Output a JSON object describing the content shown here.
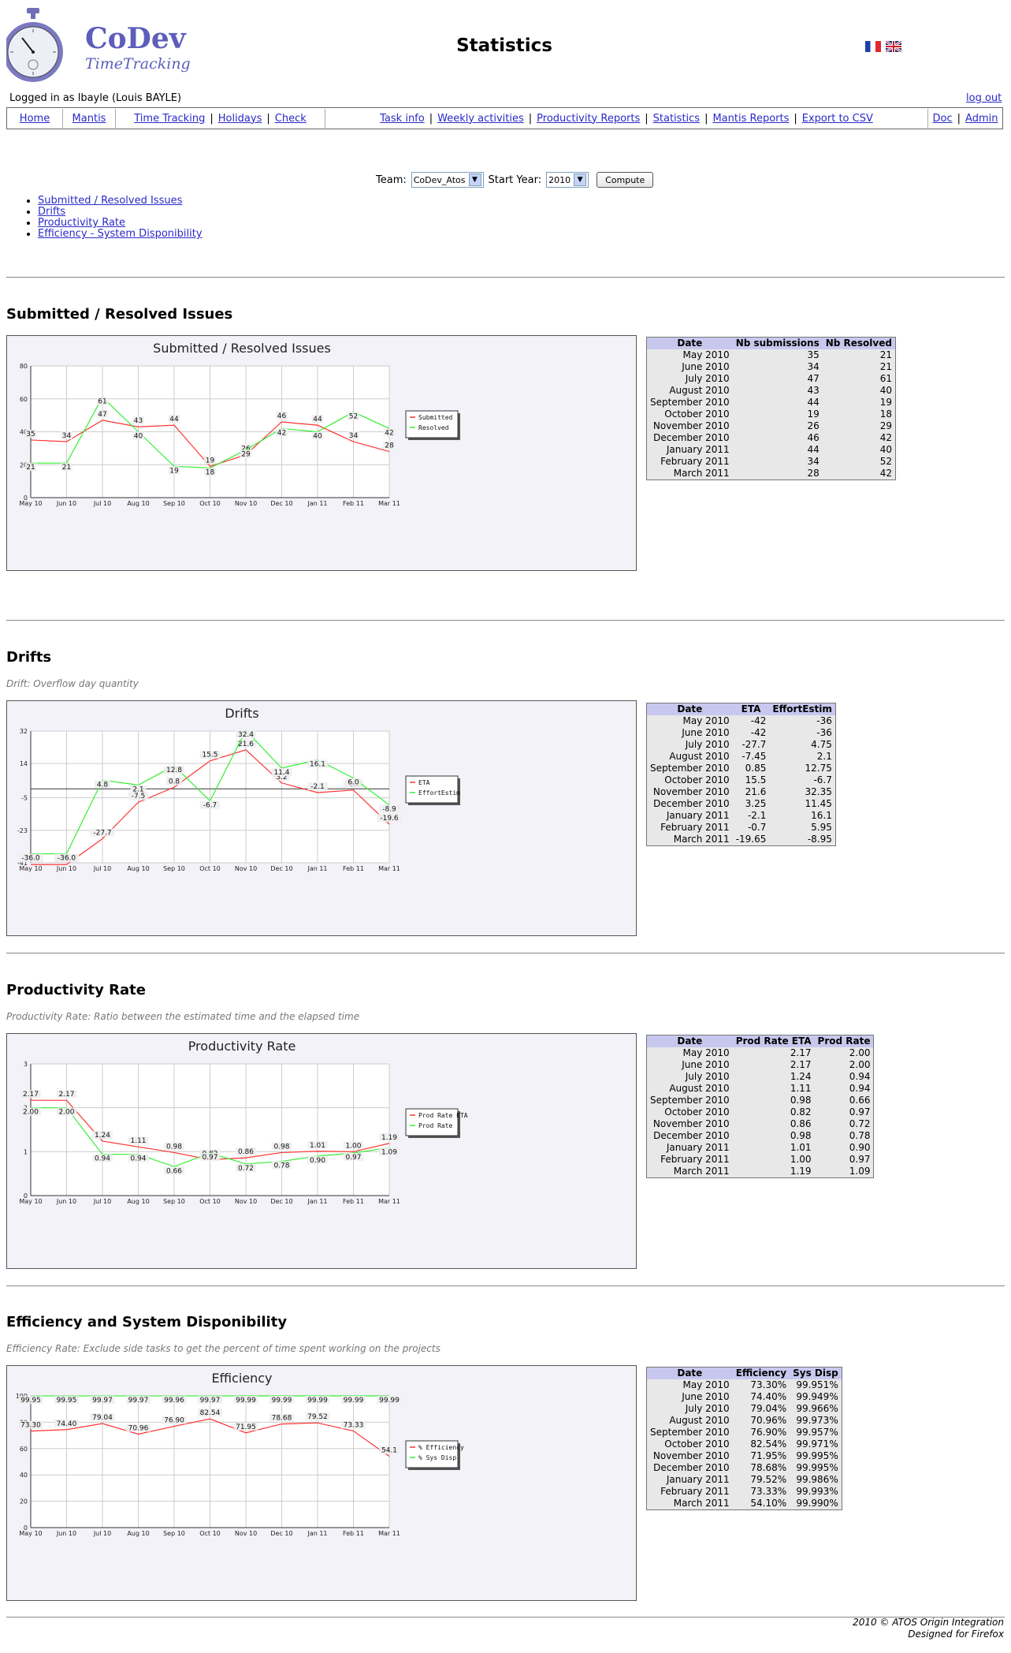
{
  "header": {
    "logo_title": "CoDev",
    "logo_subtitle": "TimeTracking",
    "page_title": "Statistics",
    "logged_in": "Logged in as lbayle (Louis BAYLE)",
    "logout": "log out"
  },
  "menu": {
    "group1": [
      "Home"
    ],
    "group2": [
      "Mantis"
    ],
    "group3": [
      "Time Tracking",
      "Holidays",
      "Check"
    ],
    "group4": [
      "Task info",
      "Weekly activities",
      "Productivity Reports",
      "Statistics",
      "Mantis Reports",
      "Export to CSV"
    ],
    "group5": [
      "Doc",
      "Admin"
    ]
  },
  "form": {
    "team_label": "Team:",
    "team_value": "CoDev_Atos",
    "year_label": "Start Year:",
    "year_value": "2010",
    "compute": "Compute"
  },
  "toc": [
    "Submitted / Resolved Issues",
    "Drifts",
    "Productivity Rate",
    "Efficiency - System Disponibility"
  ],
  "sections": {
    "submitted": {
      "title": "Submitted / Resolved Issues"
    },
    "drifts": {
      "title": "Drifts",
      "desc": "Drift: Overflow day quantity"
    },
    "prodrate": {
      "title": "Productivity Rate",
      "desc": "Productivity Rate: Ratio between the estimated time and the elapsed time"
    },
    "efficiency": {
      "title": "Efficiency and System Disponibility",
      "desc": "Efficiency Rate: Exclude side tasks to get the percent of time spent working on the projects"
    }
  },
  "chart_data": [
    {
      "id": "submitted",
      "type": "line",
      "title": "Submitted / Resolved Issues",
      "categories": [
        "May 10",
        "Jun 10",
        "Jul 10",
        "Aug 10",
        "Sep 10",
        "Oct 10",
        "Nov 10",
        "Dec 10",
        "Jan 11",
        "Feb 11",
        "Mar 11"
      ],
      "ylim": [
        0,
        80
      ],
      "yticks": [
        0,
        20,
        40,
        60,
        80
      ],
      "grid": true,
      "legend": "right",
      "series": [
        {
          "name": "Submitted",
          "color": "#ff3333",
          "values": [
            35,
            34,
            47,
            43,
            44,
            19,
            26,
            46,
            44,
            34,
            28
          ],
          "labels": [
            "35",
            "34",
            "47",
            "43",
            "44",
            "19",
            "26",
            "46",
            "44",
            "34",
            "28"
          ]
        },
        {
          "name": "Resolved",
          "color": "#33ee33",
          "values": [
            21,
            21,
            61,
            40,
            19,
            18,
            29,
            42,
            40,
            52,
            42
          ],
          "labels": [
            "21",
            "21",
            "61",
            "40",
            "19",
            "18",
            "29",
            "42",
            "40",
            "52",
            "42"
          ]
        }
      ]
    },
    {
      "id": "drifts",
      "type": "line",
      "title": "Drifts",
      "categories": [
        "May 10",
        "Jun 10",
        "Jul 10",
        "Aug 10",
        "Sep 10",
        "Oct 10",
        "Nov 10",
        "Dec 10",
        "Jan 11",
        "Feb 11",
        "Mar 11"
      ],
      "ylim": [
        -41,
        32
      ],
      "yticks": [
        -41,
        -23,
        -5,
        14,
        32
      ],
      "grid": true,
      "legend": "right",
      "series": [
        {
          "name": "ETA",
          "color": "#ff3333",
          "values": [
            -42,
            -42,
            -27.7,
            -7.45,
            0.85,
            15.5,
            21.6,
            3.25,
            -2.1,
            -0.7,
            -19.65
          ],
          "labels": [
            "-42.0",
            "-42.0",
            "-27.7",
            "-7.5",
            "0.8",
            "15.5",
            "21.6",
            "3.2",
            "-2.1",
            "-0.7",
            "-19.6"
          ]
        },
        {
          "name": "EffortEstim",
          "color": "#33ee33",
          "values": [
            -36,
            -36,
            4.75,
            2.1,
            12.75,
            -6.7,
            32.35,
            11.45,
            16.1,
            5.95,
            -8.95
          ],
          "labels": [
            "-36.0",
            "-36.0",
            "4.8",
            "2.1",
            "12.8",
            "-6.7",
            "32.4",
            "11.4",
            "16.1",
            "6.0",
            "-8.9"
          ]
        }
      ]
    },
    {
      "id": "prodrate",
      "type": "line",
      "title": "Productivity Rate",
      "categories": [
        "May 10",
        "Jun 10",
        "Jul 10",
        "Aug 10",
        "Sep 10",
        "Oct 10",
        "Nov 10",
        "Dec 10",
        "Jan 11",
        "Feb 11",
        "Mar 11"
      ],
      "ylim": [
        0,
        3
      ],
      "yticks": [
        0,
        1,
        2,
        3
      ],
      "grid": true,
      "legend": "right",
      "series": [
        {
          "name": "Prod Rate ETA",
          "color": "#ff3333",
          "values": [
            2.17,
            2.17,
            1.24,
            1.11,
            0.98,
            0.82,
            0.86,
            0.98,
            1.01,
            1.0,
            1.19
          ],
          "labels": [
            "2.17",
            "2.17",
            "1.24",
            "1.11",
            "0.98",
            "0.82",
            "0.86",
            "0.98",
            "1.01",
            "1.00",
            "1.19"
          ]
        },
        {
          "name": "Prod Rate",
          "color": "#33ee33",
          "values": [
            2.0,
            2.0,
            0.94,
            0.94,
            0.66,
            0.97,
            0.72,
            0.78,
            0.9,
            0.97,
            1.09
          ],
          "labels": [
            "2.00",
            "2.00",
            "0.94",
            "0.94",
            "0.66",
            "0.97",
            "0.72",
            "0.78",
            "0.90",
            "0.97",
            "1.09"
          ]
        }
      ]
    },
    {
      "id": "efficiency",
      "type": "line",
      "title": "Efficiency",
      "categories": [
        "May 10",
        "Jun 10",
        "Jul 10",
        "Aug 10",
        "Sep 10",
        "Oct 10",
        "Nov 10",
        "Dec 10",
        "Jan 11",
        "Feb 11",
        "Mar 11"
      ],
      "ylim": [
        0,
        100
      ],
      "yticks": [
        0,
        20,
        40,
        60,
        80,
        100
      ],
      "grid": true,
      "legend": "right",
      "series": [
        {
          "name": "% Efficiency",
          "color": "#ff3333",
          "values": [
            73.3,
            74.4,
            79.04,
            70.96,
            76.9,
            82.54,
            71.95,
            78.68,
            79.52,
            73.33,
            54.1
          ],
          "labels": [
            "73.30",
            "74.40",
            "79.04",
            "70.96",
            "76.90",
            "82.54",
            "71.95",
            "78.68",
            "79.52",
            "73.33",
            "54.1"
          ]
        },
        {
          "name": "% Sys Disp",
          "color": "#33ee33",
          "values": [
            99.95,
            99.95,
            99.97,
            99.97,
            99.96,
            99.97,
            99.99,
            99.99,
            99.99,
            99.99,
            99.99
          ],
          "labels": [
            "99.95",
            "99.95",
            "99.97",
            "99.97",
            "99.96",
            "99.97",
            "99.99",
            "99.99",
            "99.99",
            "99.99",
            "99.99"
          ]
        }
      ]
    }
  ],
  "tables": {
    "submitted": {
      "headers": [
        "Date",
        "Nb submissions",
        "Nb Resolved"
      ],
      "rows": [
        [
          "May 2010",
          "35",
          "21"
        ],
        [
          "June 2010",
          "34",
          "21"
        ],
        [
          "July 2010",
          "47",
          "61"
        ],
        [
          "August 2010",
          "43",
          "40"
        ],
        [
          "September 2010",
          "44",
          "19"
        ],
        [
          "October 2010",
          "19",
          "18"
        ],
        [
          "November 2010",
          "26",
          "29"
        ],
        [
          "December 2010",
          "46",
          "42"
        ],
        [
          "January 2011",
          "44",
          "40"
        ],
        [
          "February 2011",
          "34",
          "52"
        ],
        [
          "March 2011",
          "28",
          "42"
        ]
      ]
    },
    "drifts": {
      "headers": [
        "Date",
        "ETA",
        "EffortEstim"
      ],
      "rows": [
        [
          "May 2010",
          "-42",
          "-36"
        ],
        [
          "June 2010",
          "-42",
          "-36"
        ],
        [
          "July 2010",
          "-27.7",
          "4.75"
        ],
        [
          "August 2010",
          "-7.45",
          "2.1"
        ],
        [
          "September 2010",
          "0.85",
          "12.75"
        ],
        [
          "October 2010",
          "15.5",
          "-6.7"
        ],
        [
          "November 2010",
          "21.6",
          "32.35"
        ],
        [
          "December 2010",
          "3.25",
          "11.45"
        ],
        [
          "January 2011",
          "-2.1",
          "16.1"
        ],
        [
          "February 2011",
          "-0.7",
          "5.95"
        ],
        [
          "March 2011",
          "-19.65",
          "-8.95"
        ]
      ]
    },
    "prodrate": {
      "headers": [
        "Date",
        "Prod Rate ETA",
        "Prod Rate"
      ],
      "rows": [
        [
          "May 2010",
          "2.17",
          "2.00"
        ],
        [
          "June 2010",
          "2.17",
          "2.00"
        ],
        [
          "July 2010",
          "1.24",
          "0.94"
        ],
        [
          "August 2010",
          "1.11",
          "0.94"
        ],
        [
          "September 2010",
          "0.98",
          "0.66"
        ],
        [
          "October 2010",
          "0.82",
          "0.97"
        ],
        [
          "November 2010",
          "0.86",
          "0.72"
        ],
        [
          "December 2010",
          "0.98",
          "0.78"
        ],
        [
          "January 2011",
          "1.01",
          "0.90"
        ],
        [
          "February 2011",
          "1.00",
          "0.97"
        ],
        [
          "March 2011",
          "1.19",
          "1.09"
        ]
      ]
    },
    "efficiency": {
      "headers": [
        "Date",
        "Efficiency",
        "Sys Disp"
      ],
      "rows": [
        [
          "May 2010",
          "73.30%",
          "99.951%"
        ],
        [
          "June 2010",
          "74.40%",
          "99.949%"
        ],
        [
          "July 2010",
          "79.04%",
          "99.966%"
        ],
        [
          "August 2010",
          "70.96%",
          "99.973%"
        ],
        [
          "September 2010",
          "76.90%",
          "99.957%"
        ],
        [
          "October 2010",
          "82.54%",
          "99.971%"
        ],
        [
          "November 2010",
          "71.95%",
          "99.995%"
        ],
        [
          "December 2010",
          "78.68%",
          "99.995%"
        ],
        [
          "January 2011",
          "79.52%",
          "99.986%"
        ],
        [
          "February 2011",
          "73.33%",
          "99.993%"
        ],
        [
          "March 2011",
          "54.10%",
          "99.990%"
        ]
      ]
    }
  },
  "footer": {
    "line1": "2010 © ATOS Origin Integration",
    "line2": "Designed for Firefox"
  }
}
